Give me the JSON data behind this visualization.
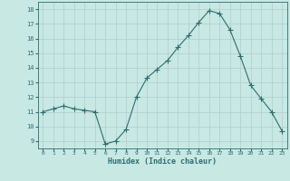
{
  "x": [
    0,
    1,
    2,
    3,
    4,
    5,
    6,
    7,
    8,
    9,
    10,
    11,
    12,
    13,
    14,
    15,
    16,
    17,
    18,
    19,
    20,
    21,
    22,
    23
  ],
  "y": [
    11.0,
    11.2,
    11.4,
    11.2,
    11.1,
    11.0,
    8.8,
    9.0,
    9.8,
    12.0,
    13.3,
    13.9,
    14.5,
    15.4,
    16.2,
    17.1,
    17.9,
    17.7,
    16.6,
    14.8,
    12.8,
    11.9,
    11.0,
    9.7
  ],
  "xlabel": "Humidex (Indice chaleur)",
  "xlim": [
    -0.5,
    23.5
  ],
  "ylim": [
    8.5,
    18.5
  ],
  "yticks": [
    9,
    10,
    11,
    12,
    13,
    14,
    15,
    16,
    17,
    18
  ],
  "xticks": [
    0,
    1,
    2,
    3,
    4,
    5,
    6,
    7,
    8,
    9,
    10,
    11,
    12,
    13,
    14,
    15,
    16,
    17,
    18,
    19,
    20,
    21,
    22,
    23
  ],
  "line_color": "#2d6e6e",
  "marker": "+",
  "bg_color": "#c8e8e4",
  "grid_color": "#b0cccc",
  "label_color": "#2d6e6e",
  "tick_color": "#2d6e6e"
}
